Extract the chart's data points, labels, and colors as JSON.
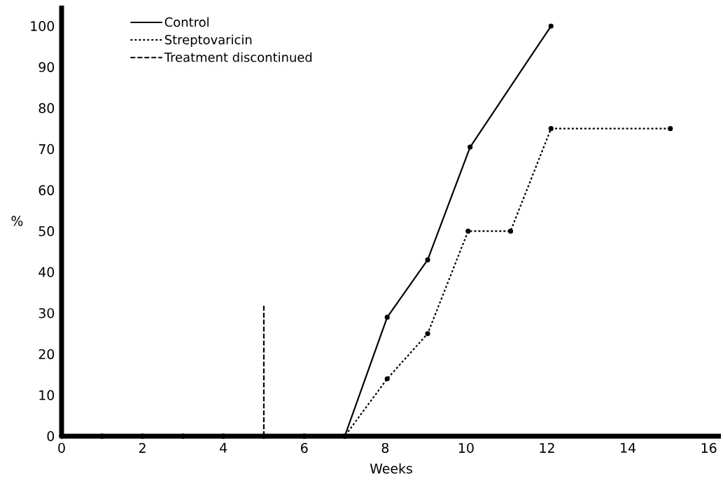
{
  "chart_data": {
    "type": "line",
    "xlabel": "Weeks",
    "ylabel": "%",
    "xlim": [
      0,
      16.3
    ],
    "ylim": [
      0,
      105
    ],
    "xticks": [
      0,
      2,
      4,
      6,
      8,
      10,
      12,
      14,
      16
    ],
    "yticks": [
      0,
      10,
      20,
      30,
      40,
      50,
      60,
      70,
      80,
      90,
      100
    ],
    "legend": "top left",
    "marker": "circle",
    "grid": false,
    "series": [
      {
        "name": "Control",
        "color": "#000000",
        "line_style": "solid",
        "x": [
          0,
          1,
          2,
          3,
          4,
          5,
          6,
          7,
          8.05,
          9.05,
          10.1,
          12.1
        ],
        "values": [
          0,
          0,
          0,
          0,
          0,
          0,
          0,
          0,
          29,
          43,
          70.5,
          100
        ]
      },
      {
        "name": "Streptovaricin",
        "color": "#000000",
        "line_style": "dotted",
        "x": [
          0,
          1,
          2,
          3,
          4,
          5,
          6,
          7,
          8.05,
          9.05,
          10.05,
          11.1,
          12.1,
          15.05
        ],
        "values": [
          0,
          0,
          0,
          0,
          0,
          0,
          0,
          0,
          14,
          25,
          50,
          50,
          75,
          75
        ]
      },
      {
        "name": "Treatment discontinued",
        "color": "#000000",
        "line_style": "dashed",
        "marker": "none",
        "x": [
          5,
          5
        ],
        "values": [
          0,
          32
        ]
      }
    ]
  }
}
